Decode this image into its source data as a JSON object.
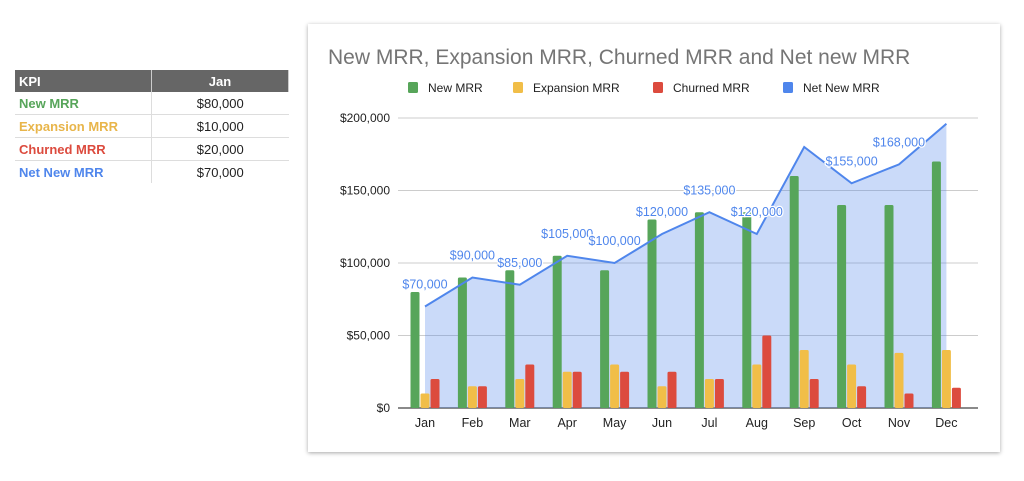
{
  "table": {
    "headers": [
      "KPI",
      "Jan"
    ],
    "rows": [
      {
        "label": "New MRR",
        "value": "$80,000",
        "color": "#57a55a"
      },
      {
        "label": "Expansion MRR",
        "value": "$10,000",
        "color": "#e8b54a"
      },
      {
        "label": "Churned MRR",
        "value": "$20,000",
        "color": "#dc4b3e"
      },
      {
        "label": "Net New MRR",
        "value": "$70,000",
        "color": "#4f86ec"
      }
    ]
  },
  "chart_data": {
    "type": "bar+area",
    "title": "New MRR, Expansion MRR, Churned MRR and Net new MRR",
    "legend_position": "top",
    "categories": [
      "Jan",
      "Feb",
      "Mar",
      "Apr",
      "May",
      "Jun",
      "Jul",
      "Aug",
      "Sep",
      "Oct",
      "Nov",
      "Dec"
    ],
    "ylim": [
      0,
      200000
    ],
    "yticks": [
      0,
      50000,
      100000,
      150000,
      200000
    ],
    "ytick_labels": [
      "$0",
      "$50,000",
      "$100,000",
      "$150,000",
      "$200,000"
    ],
    "grid": true,
    "series": [
      {
        "name": "New MRR",
        "type": "bar",
        "color": "#57a55a",
        "values": [
          80000,
          90000,
          95000,
          105000,
          95000,
          130000,
          135000,
          135000,
          160000,
          140000,
          140000,
          170000
        ]
      },
      {
        "name": "Expansion MRR",
        "type": "bar",
        "color": "#f1be48",
        "values": [
          10000,
          15000,
          20000,
          25000,
          30000,
          15000,
          20000,
          30000,
          40000,
          30000,
          38000,
          40000
        ]
      },
      {
        "name": "Churned MRR",
        "type": "bar",
        "color": "#dc4b3e",
        "values": [
          20000,
          15000,
          30000,
          25000,
          25000,
          25000,
          20000,
          50000,
          20000,
          15000,
          10000,
          14000
        ]
      },
      {
        "name": "Net New MRR",
        "type": "area-line",
        "color": "#4f86ec",
        "values": [
          70000,
          90000,
          85000,
          105000,
          100000,
          120000,
          135000,
          120000,
          180000,
          155000,
          168000,
          196000
        ],
        "data_labels": [
          "$70,000",
          "$90,000",
          "$85,000",
          "$105,000",
          "$100,000",
          "$120,000",
          "$135,000",
          "$120,000",
          "",
          "$155,000",
          "$168,000",
          ""
        ]
      }
    ]
  }
}
